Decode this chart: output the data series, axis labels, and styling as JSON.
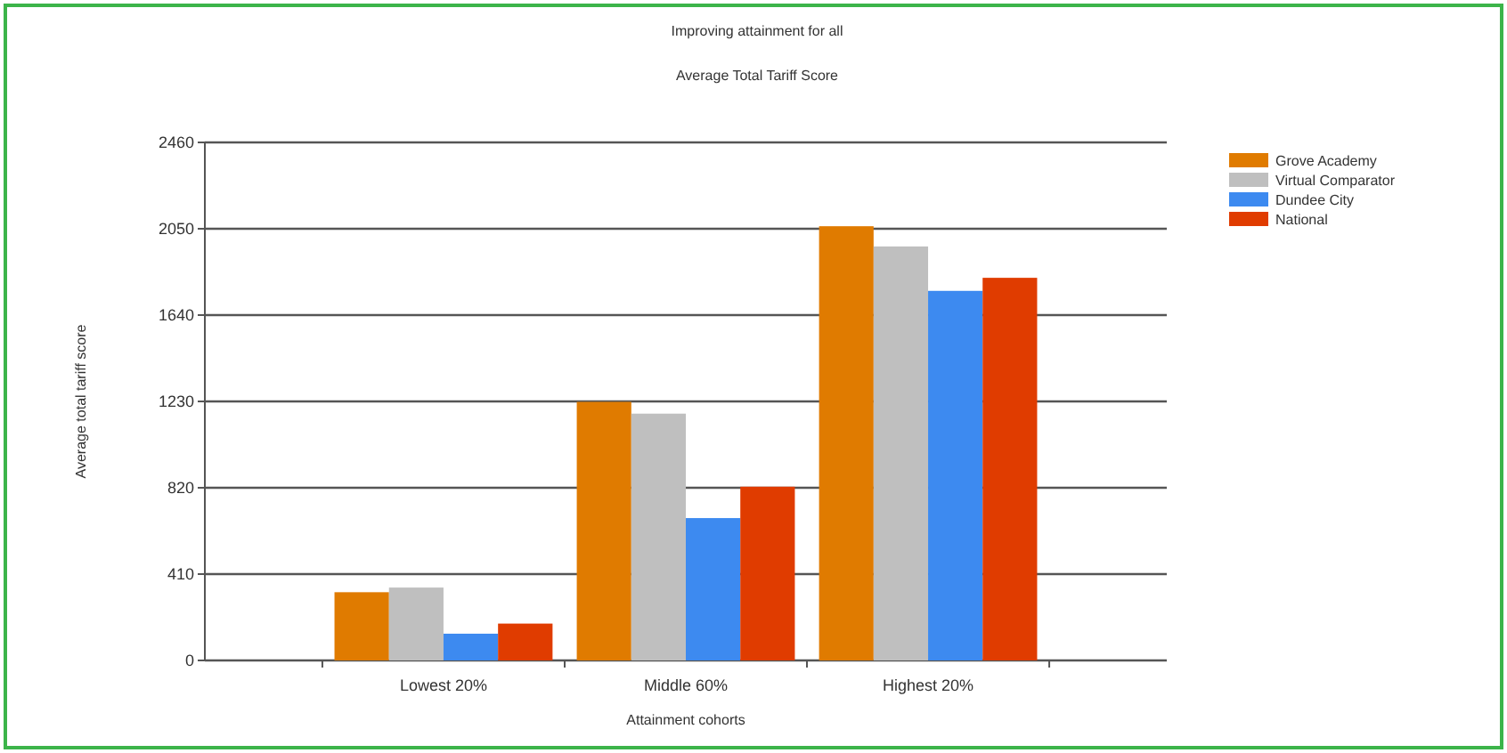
{
  "chart_data": {
    "type": "bar",
    "title": "Improving attainment for all",
    "subtitle": "Average Total Tariff Score",
    "xlabel": "Attainment cohorts",
    "ylabel": "Average total tariff score",
    "categories": [
      "Lowest 20%",
      "Middle 60%",
      "Highest 20%"
    ],
    "series": [
      {
        "name": "Grove Academy",
        "color": "#e07b00",
        "values": [
          324,
          1228,
          2062
        ]
      },
      {
        "name": "Virtual Comparator",
        "color": "#bfbfbf",
        "values": [
          346,
          1172,
          1966
        ]
      },
      {
        "name": "Dundee City",
        "color": "#3d8af0",
        "values": [
          127,
          676,
          1755
        ]
      },
      {
        "name": "National",
        "color": "#e03c00",
        "values": [
          175,
          825,
          1817
        ]
      }
    ],
    "ylim": [
      0,
      2460
    ],
    "yticks": [
      0,
      410,
      820,
      1230,
      1640,
      2050,
      2460
    ],
    "grid": "y",
    "legend": "top right"
  }
}
